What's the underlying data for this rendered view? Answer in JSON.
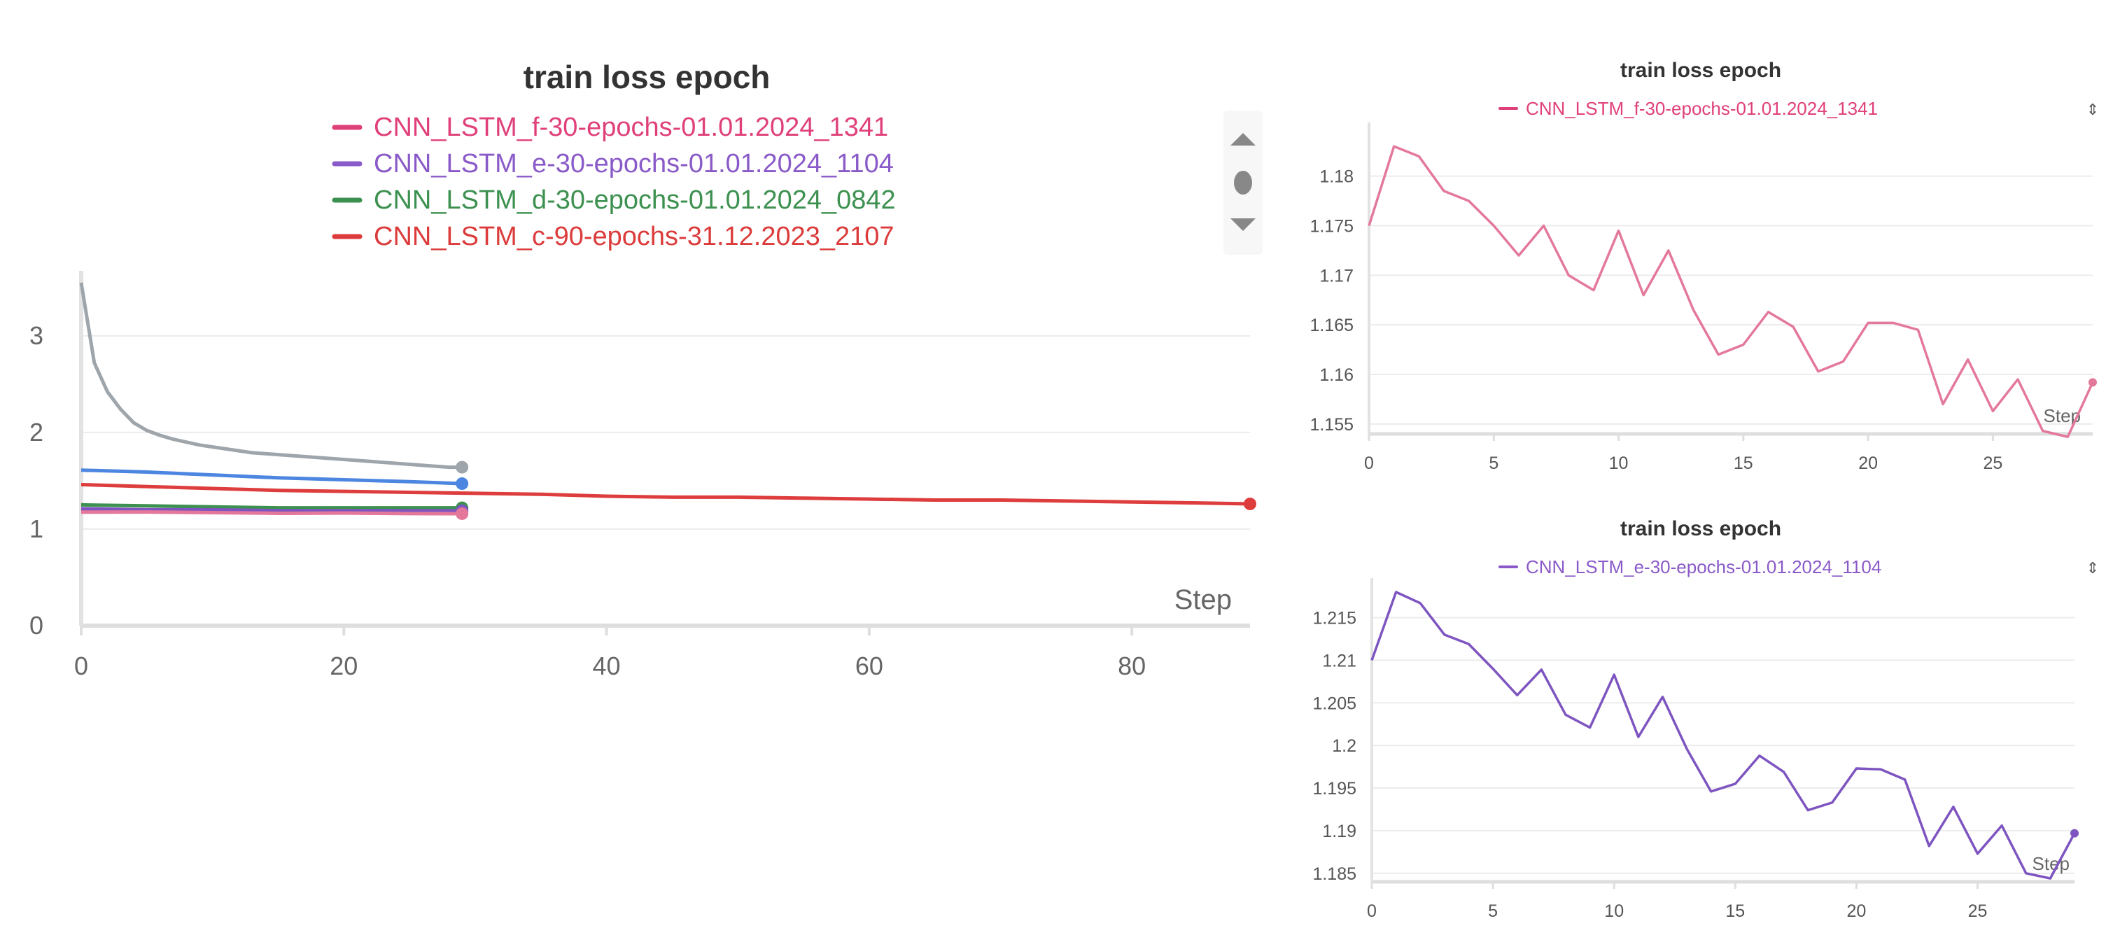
{
  "colors": {
    "f": "#e4789a",
    "e": "#7e55c0",
    "d": "#3d9150",
    "c": "#de3d3d",
    "gray": "#9ea5ab",
    "blue": "#4c86e0",
    "legend_f": "#e0407a",
    "legend_e": "#8a5ac8",
    "legend_d": "#3d9150",
    "legend_c": "#dc3b3b"
  },
  "chart_data": [
    {
      "type": "line",
      "title": "train loss epoch",
      "xlabel": "Step",
      "ylabel": "",
      "xlim": [
        0,
        89
      ],
      "ylim": [
        0,
        3.6
      ],
      "x_ticks": [
        "0",
        "20",
        "40",
        "60",
        "80"
      ],
      "y_ticks": [
        "0",
        "1",
        "2",
        "3"
      ],
      "grid": true,
      "legend_position": "top",
      "legend": [
        {
          "name": "CNN_LSTM_f-30-epochs-01.01.2024_1341",
          "color_key": "legend_f"
        },
        {
          "name": "CNN_LSTM_e-30-epochs-01.01.2024_1104",
          "color_key": "legend_e"
        },
        {
          "name": "CNN_LSTM_d-30-epochs-01.01.2024_0842",
          "color_key": "legend_d"
        },
        {
          "name": "CNN_LSTM_c-90-epochs-31.12.2023_2107",
          "color_key": "legend_c"
        }
      ],
      "series": [
        {
          "color_key": "gray",
          "x": [
            0,
            1,
            2,
            3,
            4,
            5,
            6,
            7,
            8,
            9,
            10,
            11,
            12,
            13,
            14,
            15,
            16,
            17,
            18,
            19,
            20,
            21,
            22,
            23,
            24,
            25,
            26,
            27,
            28,
            29
          ],
          "values": [
            3.55,
            2.72,
            2.42,
            2.24,
            2.1,
            2.02,
            1.97,
            1.93,
            1.9,
            1.87,
            1.85,
            1.83,
            1.81,
            1.79,
            1.78,
            1.77,
            1.76,
            1.75,
            1.74,
            1.73,
            1.72,
            1.71,
            1.7,
            1.69,
            1.68,
            1.67,
            1.66,
            1.65,
            1.64,
            1.64
          ]
        },
        {
          "color_key": "blue",
          "x": [
            0,
            5,
            10,
            15,
            20,
            25,
            29
          ],
          "values": [
            1.61,
            1.59,
            1.56,
            1.53,
            1.51,
            1.49,
            1.47
          ]
        },
        {
          "color_key": "c",
          "x": [
            0,
            5,
            10,
            15,
            20,
            25,
            30,
            35,
            40,
            45,
            50,
            55,
            60,
            65,
            70,
            75,
            80,
            85,
            89
          ],
          "values": [
            1.46,
            1.44,
            1.42,
            1.4,
            1.39,
            1.38,
            1.37,
            1.36,
            1.34,
            1.33,
            1.33,
            1.32,
            1.31,
            1.3,
            1.3,
            1.29,
            1.28,
            1.27,
            1.26
          ]
        },
        {
          "color_key": "d",
          "x": [
            0,
            5,
            10,
            15,
            20,
            25,
            29
          ],
          "values": [
            1.25,
            1.24,
            1.23,
            1.22,
            1.22,
            1.22,
            1.22
          ]
        },
        {
          "color_key": "e",
          "x": [
            0,
            5,
            10,
            15,
            20,
            25,
            29
          ],
          "values": [
            1.21,
            1.2,
            1.2,
            1.19,
            1.19,
            1.19,
            1.19
          ]
        },
        {
          "color_key": "f",
          "x": [
            0,
            5,
            10,
            15,
            20,
            25,
            29
          ],
          "values": [
            1.175,
            1.176,
            1.17,
            1.163,
            1.165,
            1.16,
            1.159
          ]
        }
      ]
    },
    {
      "type": "line",
      "title": "train loss epoch",
      "xlabel": "Step",
      "ylabel": "",
      "xlim": [
        0,
        29
      ],
      "ylim": [
        1.154,
        1.184
      ],
      "x_ticks": [
        0,
        5,
        10,
        15,
        20,
        25
      ],
      "y_ticks": [
        1.155,
        1.16,
        1.165,
        1.17,
        1.175,
        1.18
      ],
      "y_tick_labels": [
        "1.155",
        "1.16",
        "1.165",
        "1.17",
        "1.175",
        "1.18"
      ],
      "grid": true,
      "legend_position": "top",
      "legend": [
        {
          "name": "CNN_LSTM_f-30-epochs-01.01.2024_1341",
          "color_key": "legend_f"
        }
      ],
      "series": [
        {
          "color_key": "f",
          "x": [
            0,
            1,
            2,
            3,
            4,
            5,
            6,
            7,
            8,
            9,
            10,
            11,
            12,
            13,
            14,
            15,
            16,
            17,
            18,
            19,
            20,
            21,
            22,
            23,
            24,
            25,
            26,
            27,
            28,
            29
          ],
          "values": [
            1.175,
            1.183,
            1.182,
            1.1785,
            1.1775,
            1.175,
            1.172,
            1.175,
            1.17,
            1.1685,
            1.1745,
            1.168,
            1.1725,
            1.1665,
            1.162,
            1.163,
            1.1663,
            1.1648,
            1.1603,
            1.1613,
            1.1652,
            1.1652,
            1.1645,
            1.157,
            1.1615,
            1.1563,
            1.1595,
            1.1543,
            1.1537,
            1.1592
          ]
        }
      ]
    },
    {
      "type": "line",
      "title": "train loss epoch",
      "xlabel": "Step",
      "ylabel": "",
      "xlim": [
        0,
        29
      ],
      "ylim": [
        1.184,
        1.218
      ],
      "x_ticks": [
        0,
        5,
        10,
        15,
        20,
        25
      ],
      "y_ticks": [
        1.185,
        1.19,
        1.195,
        1.2,
        1.205,
        1.21,
        1.215
      ],
      "y_tick_labels": [
        "1.185",
        "1.19",
        "1.195",
        "1.2",
        "1.205",
        "1.21",
        "1.215"
      ],
      "grid": true,
      "legend_position": "top",
      "legend": [
        {
          "name": "CNN_LSTM_e-30-epochs-01.01.2024_1104",
          "color_key": "legend_e"
        }
      ],
      "series": [
        {
          "color_key": "e",
          "x": [
            0,
            1,
            2,
            3,
            4,
            5,
            6,
            7,
            8,
            9,
            10,
            11,
            12,
            13,
            14,
            15,
            16,
            17,
            18,
            19,
            20,
            21,
            22,
            23,
            24,
            25,
            26,
            27,
            28,
            29
          ],
          "values": [
            1.21,
            1.218,
            1.2167,
            1.213,
            1.2119,
            1.209,
            1.2059,
            1.2089,
            1.2036,
            1.2021,
            1.2083,
            1.201,
            1.2057,
            1.1996,
            1.1946,
            1.1955,
            1.1988,
            1.1969,
            1.1924,
            1.1933,
            1.1973,
            1.1972,
            1.196,
            1.1882,
            1.1928,
            1.1873,
            1.1906,
            1.185,
            1.1844,
            1.1897
          ]
        }
      ]
    }
  ]
}
